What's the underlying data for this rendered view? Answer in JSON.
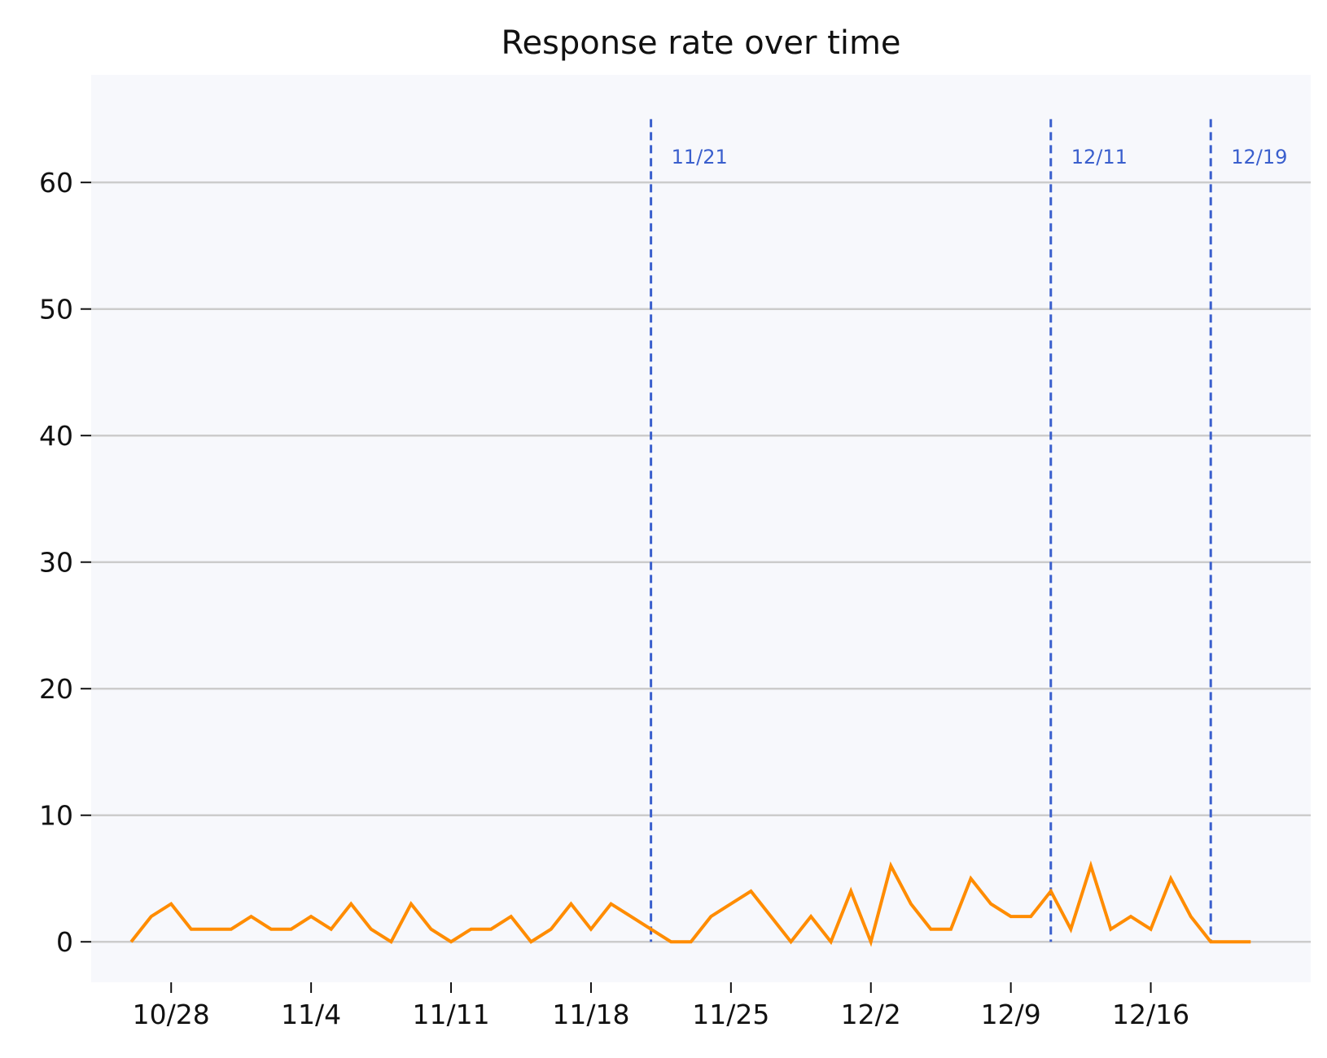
{
  "chart_data": {
    "type": "line",
    "title": "Response rate over time",
    "xlabel": "",
    "ylabel": "",
    "x_start": "2023-10-26",
    "x_end": "2023-12-21",
    "xlim": [
      "2023-10-24",
      "2023-12-24"
    ],
    "ylim": [
      -3.2,
      68.5
    ],
    "yticks": [
      0,
      10,
      20,
      30,
      40,
      50,
      60
    ],
    "xticks": [
      {
        "date": "2023-10-28",
        "label": "10/28"
      },
      {
        "date": "2023-11-04",
        "label": "11/4"
      },
      {
        "date": "2023-11-11",
        "label": "11/11"
      },
      {
        "date": "2023-11-18",
        "label": "11/18"
      },
      {
        "date": "2023-11-25",
        "label": "11/25"
      },
      {
        "date": "2023-12-02",
        "label": "12/2"
      },
      {
        "date": "2023-12-09",
        "label": "12/9"
      },
      {
        "date": "2023-12-16",
        "label": "12/16"
      }
    ],
    "grid": "horizontal",
    "series": [
      {
        "values": [
          0,
          2,
          3,
          1,
          1,
          1,
          2,
          1,
          1,
          2,
          1,
          3,
          1,
          0,
          3,
          1,
          0,
          1,
          1,
          2,
          0,
          1,
          3,
          1,
          3,
          2,
          1,
          0,
          0,
          2,
          3,
          4,
          2,
          0,
          2,
          0,
          4,
          0,
          6,
          3,
          1,
          1,
          5,
          3,
          2,
          2,
          4,
          1,
          6,
          1,
          2,
          1,
          5,
          2,
          0,
          0,
          0
        ]
      }
    ],
    "annotations": [
      {
        "date": "2023-11-21",
        "label": "11/21"
      },
      {
        "date": "2023-12-11",
        "label": "12/11"
      },
      {
        "date": "2023-12-19",
        "label": "12/19"
      }
    ]
  },
  "colors": {
    "plot_background": "#f7f8fc",
    "grid": "#cccccc",
    "line": "#ff8c00",
    "marker": "#3a5fcd",
    "text": "#111111"
  }
}
